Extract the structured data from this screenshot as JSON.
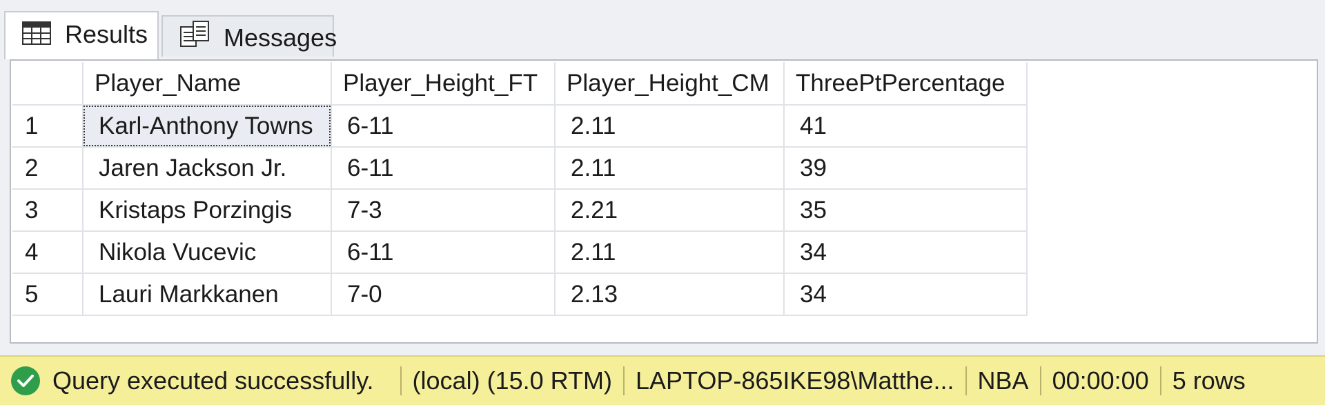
{
  "tabs": {
    "results": {
      "label": "Results",
      "icon": "grid-icon"
    },
    "messages": {
      "label": "Messages",
      "icon": "messages-icon"
    }
  },
  "grid": {
    "columns": [
      "Player_Name",
      "Player_Height_FT",
      "Player_Height_CM",
      "ThreePtPercentage"
    ],
    "rows": [
      {
        "num": "1",
        "cells": [
          "Karl-Anthony Towns",
          "6-11",
          "2.11",
          "41"
        ]
      },
      {
        "num": "2",
        "cells": [
          "Jaren Jackson Jr.",
          "6-11",
          "2.11",
          "39"
        ]
      },
      {
        "num": "3",
        "cells": [
          "Kristaps Porzingis",
          "7-3",
          "2.21",
          "35"
        ]
      },
      {
        "num": "4",
        "cells": [
          "Nikola Vucevic",
          "6-11",
          "2.11",
          "34"
        ]
      },
      {
        "num": "5",
        "cells": [
          "Lauri Markkanen",
          "7-0",
          "2.13",
          "34"
        ]
      }
    ]
  },
  "status": {
    "message": "Query executed successfully.",
    "server": "(local) (15.0 RTM)",
    "user": "LAPTOP-865IKE98\\Matthe...",
    "database": "NBA",
    "elapsed": "00:00:00",
    "rowcount": "5 rows",
    "icon": "success-check-icon",
    "colors": {
      "bar": "#f5ef9a",
      "ok": "#2e9e4a"
    }
  }
}
